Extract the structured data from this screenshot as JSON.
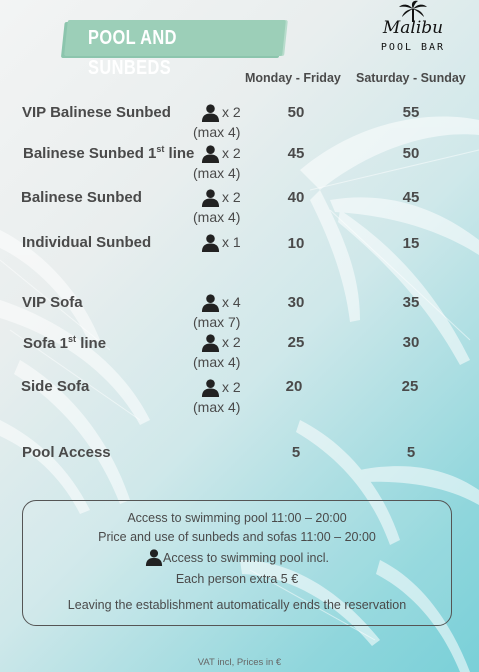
{
  "header": {
    "title": "POOL AND SUNBEDS",
    "logo_script": "Malibu",
    "logo_sub": "POOL BAR"
  },
  "columns": {
    "weekday": "Monday - Friday",
    "weekend": "Saturday - Sunday"
  },
  "rows": [
    {
      "name": "VIP Balinese Sunbed",
      "cap": "x 2",
      "max": "(max 4)",
      "weekday": "50",
      "weekend": "55"
    },
    {
      "name_main": "Balinese Sunbed 1",
      "name_sup": "st",
      "name_tail": " line",
      "cap": "x 2",
      "max": "(max 4)",
      "weekday": "45",
      "weekend": "50"
    },
    {
      "name": "Balinese Sunbed",
      "cap": "x 2",
      "max": "(max 4)",
      "weekday": "40",
      "weekend": "45"
    },
    {
      "name": "Individual Sunbed",
      "cap": "x 1",
      "max": "",
      "weekday": "10",
      "weekend": "15"
    },
    {
      "name": "VIP Sofa",
      "cap": "x 4",
      "max": "(max 7)",
      "weekday": "30",
      "weekend": "35"
    },
    {
      "name_main": "Sofa 1",
      "name_sup": "st",
      "name_tail": " line",
      "cap": "x 2",
      "max": "(max 4)",
      "weekday": "25",
      "weekend": "30"
    },
    {
      "name": "Side Sofa",
      "cap": "x 2",
      "max": "(max 4)",
      "weekday": "20",
      "weekend": "25"
    },
    {
      "name": "Pool Access",
      "weekday": "5",
      "weekend": "5"
    }
  ],
  "info": {
    "line1": "Access to swimming pool 11:00 – 20:00",
    "line2": "Price and use of sunbeds and sofas 11:00 – 20:00",
    "line3": "Access to swimming pool incl.",
    "line4": "Each person extra 5 €",
    "line5": "Leaving the establishment automatically ends the reservation"
  },
  "footer": "VAT incl, Prices in €"
}
